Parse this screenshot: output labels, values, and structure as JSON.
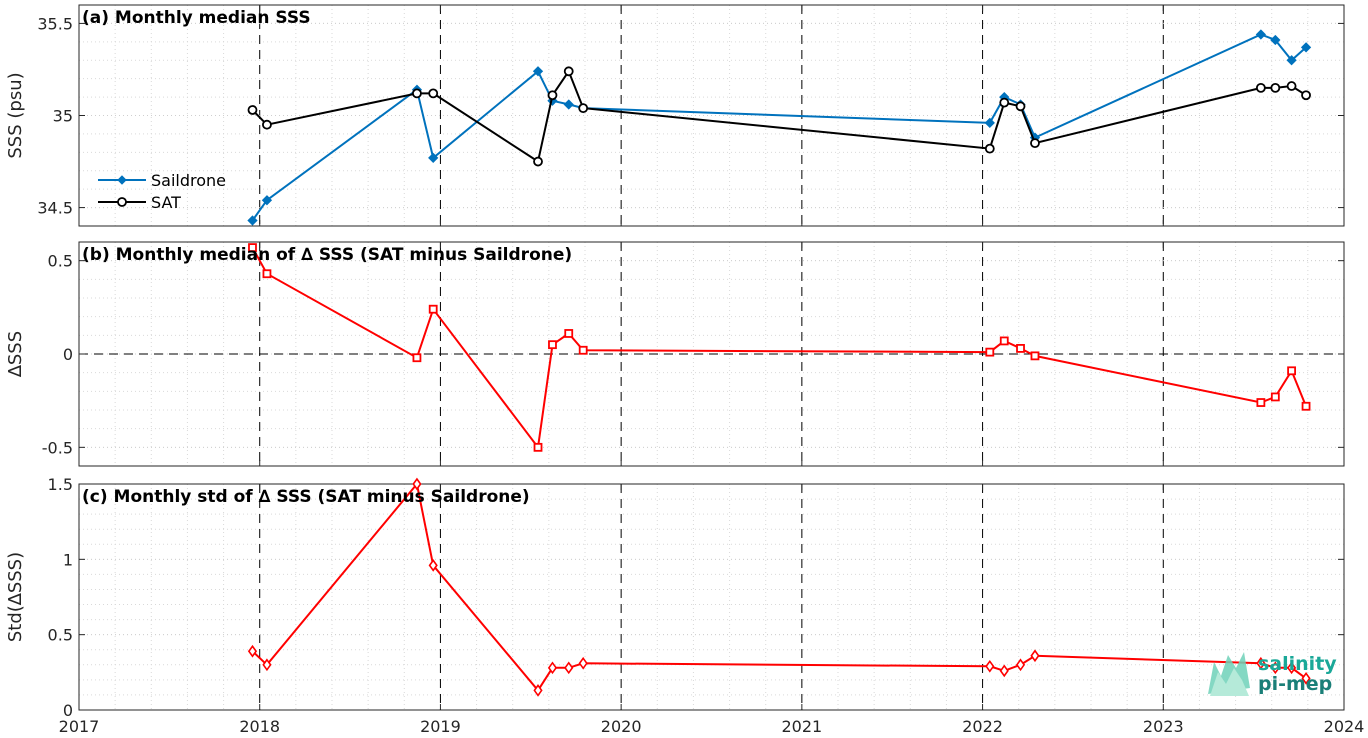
{
  "chart_data": [
    {
      "type": "line",
      "title": "(a) Monthly median SSS",
      "ylabel": "SSS (psu)",
      "xlim": [
        2017,
        2024
      ],
      "ylim": [
        34.4,
        35.6
      ],
      "yticks": [
        34.5,
        35,
        35.5
      ],
      "ytick_labels": [
        "34.5",
        "35",
        "35.5"
      ],
      "grid": true,
      "legend": "left",
      "series": [
        {
          "name": "Saildrone",
          "color": "#0072BD",
          "marker": "diamond",
          "x": [
            2017.96,
            2018.04,
            2018.87,
            2018.96,
            2019.54,
            2019.62,
            2019.71,
            2019.79,
            2022.04,
            2022.12,
            2022.21,
            2022.29,
            2023.54,
            2023.62,
            2023.71,
            2023.79
          ],
          "y": [
            34.43,
            34.54,
            35.14,
            34.77,
            35.24,
            35.08,
            35.06,
            35.04,
            34.96,
            35.1,
            35.06,
            34.88,
            35.44,
            35.41,
            35.3,
            35.37
          ]
        },
        {
          "name": "SAT",
          "color": "#000000",
          "marker": "circle",
          "x": [
            2017.96,
            2018.04,
            2018.87,
            2018.96,
            2019.54,
            2019.62,
            2019.71,
            2019.79,
            2022.04,
            2022.12,
            2022.21,
            2022.29,
            2023.54,
            2023.62,
            2023.71,
            2023.79
          ],
          "y": [
            35.03,
            34.95,
            35.12,
            35.12,
            34.75,
            35.11,
            35.24,
            35.04,
            34.82,
            35.07,
            35.05,
            34.85,
            35.15,
            35.15,
            35.16,
            35.11
          ]
        }
      ]
    },
    {
      "type": "line",
      "title": "(b) Monthly median of ∆ SSS (SAT minus Saildrone)",
      "ylabel": "∆SSS",
      "xlim": [
        2017,
        2024
      ],
      "ylim": [
        -0.6,
        0.6
      ],
      "yticks": [
        -0.5,
        0,
        0.5
      ],
      "ytick_labels": [
        "-0.5",
        "0",
        "0.5"
      ],
      "grid": true,
      "reference_line_y": 0,
      "series": [
        {
          "color": "#FF0000",
          "marker": "square",
          "x": [
            2017.96,
            2018.04,
            2018.87,
            2018.96,
            2019.54,
            2019.62,
            2019.71,
            2019.79,
            2022.04,
            2022.12,
            2022.21,
            2022.29,
            2023.54,
            2023.62,
            2023.71,
            2023.79
          ],
          "y": [
            0.57,
            0.43,
            -0.02,
            0.24,
            -0.5,
            0.05,
            0.11,
            0.02,
            0.01,
            0.07,
            0.03,
            -0.01,
            -0.26,
            -0.23,
            -0.09,
            -0.28
          ]
        }
      ]
    },
    {
      "type": "line",
      "title": "(c) Monthly std of ∆ SSS (SAT minus Saildrone)",
      "ylabel": "Std(∆SSS)",
      "xlim": [
        2017,
        2024
      ],
      "ylim": [
        0,
        1.5
      ],
      "yticks": [
        0,
        0.5,
        1,
        1.5
      ],
      "ytick_labels": [
        "0",
        "0.5",
        "1",
        "1.5"
      ],
      "xticks": [
        2017,
        2018,
        2019,
        2020,
        2021,
        2022,
        2023,
        2024
      ],
      "xtick_labels": [
        "2017",
        "2018",
        "2019",
        "2020",
        "2021",
        "2022",
        "2023",
        "2024"
      ],
      "grid": true,
      "series": [
        {
          "color": "#FF0000",
          "marker": "diamond",
          "x": [
            2017.96,
            2018.04,
            2018.87,
            2018.96,
            2019.54,
            2019.62,
            2019.71,
            2019.79,
            2022.04,
            2022.12,
            2022.21,
            2022.29,
            2023.54,
            2023.62,
            2023.71,
            2023.79
          ],
          "y": [
            0.39,
            0.3,
            1.5,
            0.96,
            0.13,
            0.28,
            0.28,
            0.31,
            0.29,
            0.26,
            0.3,
            0.36,
            0.31,
            0.28,
            0.28,
            0.21
          ]
        }
      ]
    }
  ],
  "logo": {
    "line1": "salinity",
    "line2": "pi-mep",
    "color": "#1aa898"
  }
}
